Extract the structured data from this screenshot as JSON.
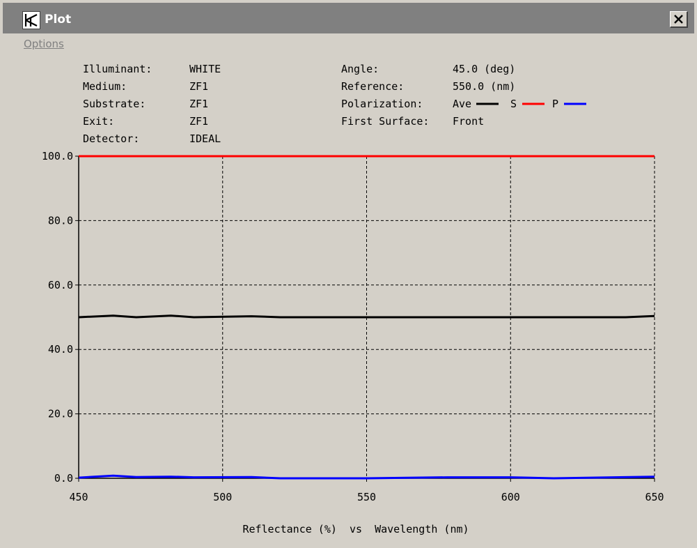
{
  "window": {
    "title": "Plot",
    "menu": [
      "Options"
    ],
    "icons": {
      "app": "plot-app-icon",
      "close": "close-icon"
    }
  },
  "info": {
    "left": [
      {
        "label": "Illuminant:",
        "value": "WHITE"
      },
      {
        "label": "Medium:",
        "value": "ZF1"
      },
      {
        "label": "Substrate:",
        "value": "ZF1"
      },
      {
        "label": "Exit:",
        "value": "ZF1"
      },
      {
        "label": "Detector:",
        "value": "IDEAL"
      }
    ],
    "right": [
      {
        "label": "Angle:",
        "value": "45.0 (deg)"
      },
      {
        "label": "Reference:",
        "value": "550.0 (nm)"
      },
      {
        "label": "Polarization:",
        "value": ""
      },
      {
        "label": "First Surface:",
        "value": "Front"
      }
    ]
  },
  "chart_data": {
    "type": "line",
    "xlabel": "Reflectance (%)  vs  Wavelength (nm)",
    "xlim": [
      450,
      650
    ],
    "ylim": [
      0,
      100
    ],
    "x_ticks": [
      "450",
      "500",
      "550",
      "600",
      "650"
    ],
    "y_ticks": [
      "0.0",
      "20.0",
      "40.0",
      "60.0",
      "80.0",
      "100.0"
    ],
    "grid": true,
    "legend_placement": "top-right",
    "series": [
      {
        "name": "Ave",
        "color": "#000000",
        "x": [
          450,
          462,
          470,
          482,
          490,
          510,
          520,
          550,
          600,
          640,
          650
        ],
        "y": [
          50.0,
          50.5,
          50.0,
          50.5,
          50.0,
          50.3,
          50.0,
          50.0,
          50.0,
          50.0,
          50.4
        ]
      },
      {
        "name": "S",
        "color": "#ff0000",
        "x": [
          450,
          500,
          550,
          600,
          650
        ],
        "y": [
          100.0,
          100.0,
          100.0,
          100.0,
          100.0
        ]
      },
      {
        "name": "P",
        "color": "#0000ff",
        "x": [
          450,
          462,
          470,
          482,
          490,
          510,
          520,
          550,
          578,
          600,
          615,
          650
        ],
        "y": [
          0.2,
          0.8,
          0.4,
          0.5,
          0.3,
          0.4,
          0.0,
          0.0,
          0.3,
          0.3,
          0.0,
          0.5
        ]
      }
    ]
  }
}
